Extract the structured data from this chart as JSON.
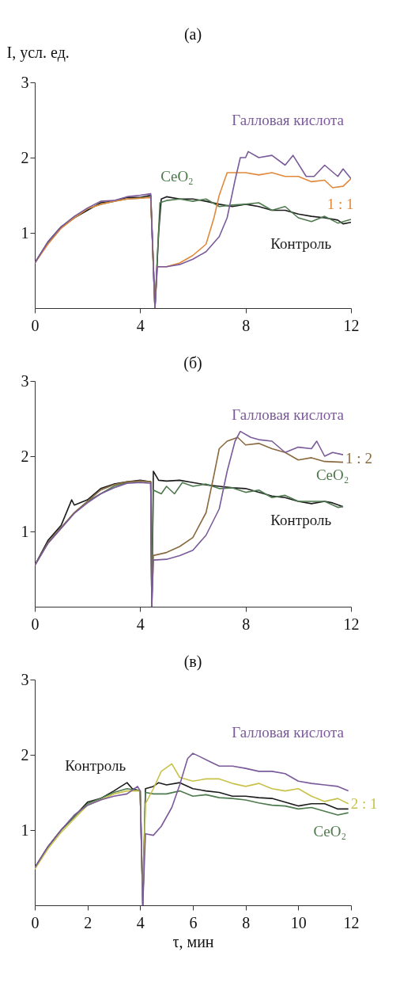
{
  "chart_data": [
    {
      "type": "line",
      "title": "(а)",
      "ylabel": "I, усл. ед.",
      "xlim": [
        0,
        12
      ],
      "ylim": [
        0,
        3
      ],
      "xticks": [
        0,
        4,
        8,
        12
      ],
      "yticks": [
        1,
        2,
        3
      ],
      "series": [
        {
          "name": "Контроль",
          "color": "#1c1c1c",
          "x": [
            0,
            0.5,
            1,
            1.5,
            2,
            2.5,
            3,
            3.5,
            4,
            4.4,
            4.56,
            4.7,
            4.8,
            5,
            5.5,
            6,
            6.5,
            7,
            7.5,
            8,
            8.5,
            9,
            9.5,
            10,
            10.5,
            11,
            11.5,
            11.7,
            12
          ],
          "values": [
            0.6,
            0.88,
            1.08,
            1.2,
            1.3,
            1.4,
            1.42,
            1.47,
            1.47,
            1.5,
            0,
            1.0,
            1.45,
            1.48,
            1.45,
            1.45,
            1.42,
            1.38,
            1.35,
            1.38,
            1.35,
            1.3,
            1.3,
            1.25,
            1.22,
            1.2,
            1.17,
            1.12,
            1.14
          ]
        },
        {
          "name": "CeO₂",
          "color": "#4e7a4e",
          "x": [
            0,
            0.5,
            1,
            1.5,
            2,
            2.5,
            3,
            3.5,
            4,
            4.4,
            4.56,
            4.75,
            5,
            5.5,
            6,
            6.5,
            7,
            7.5,
            8,
            8.5,
            9,
            9.5,
            10,
            10.5,
            11,
            11.5,
            12
          ],
          "values": [
            0.6,
            0.86,
            1.07,
            1.2,
            1.32,
            1.38,
            1.42,
            1.45,
            1.46,
            1.48,
            0,
            1.4,
            1.43,
            1.45,
            1.42,
            1.45,
            1.35,
            1.37,
            1.38,
            1.4,
            1.3,
            1.35,
            1.2,
            1.15,
            1.22,
            1.13,
            1.18
          ]
        },
        {
          "name": "1 : 1",
          "color": "#e0893c",
          "x": [
            0,
            0.5,
            1,
            1.5,
            2,
            2.5,
            3,
            3.5,
            4,
            4.4,
            4.56,
            4.65,
            5,
            5.5,
            6,
            6.5,
            6.8,
            7,
            7.3,
            7.7,
            8,
            8.5,
            9,
            9.5,
            10,
            10.5,
            11,
            11.3,
            11.7,
            12
          ],
          "values": [
            0.6,
            0.85,
            1.06,
            1.2,
            1.32,
            1.38,
            1.42,
            1.45,
            1.46,
            1.47,
            0,
            0.55,
            0.55,
            0.6,
            0.7,
            0.85,
            1.2,
            1.5,
            1.8,
            1.8,
            1.8,
            1.77,
            1.8,
            1.75,
            1.75,
            1.68,
            1.7,
            1.6,
            1.62,
            1.72
          ]
        },
        {
          "name": "Галловая кислота",
          "color": "#7a5a9a",
          "x": [
            0,
            0.5,
            1,
            1.5,
            2,
            2.5,
            3,
            3.5,
            4,
            4.4,
            4.56,
            4.65,
            5,
            5.5,
            6,
            6.5,
            7,
            7.3,
            7.6,
            7.8,
            8,
            8.1,
            8.5,
            9,
            9.5,
            9.8,
            10.3,
            10.6,
            11,
            11.5,
            11.7,
            12
          ],
          "values": [
            0.6,
            0.88,
            1.08,
            1.22,
            1.33,
            1.42,
            1.43,
            1.48,
            1.5,
            1.52,
            0,
            0.55,
            0.55,
            0.58,
            0.65,
            0.75,
            0.95,
            1.2,
            1.7,
            2.0,
            2.0,
            2.08,
            2.0,
            2.03,
            1.9,
            2.03,
            1.75,
            1.75,
            1.9,
            1.75,
            1.85,
            1.72
          ]
        }
      ],
      "legend": "top right"
    },
    {
      "type": "line",
      "title": "(б)",
      "xlim": [
        0,
        12
      ],
      "ylim": [
        0,
        3
      ],
      "xticks": [
        0,
        4,
        8,
        12
      ],
      "yticks": [
        1,
        2,
        3
      ],
      "series": [
        {
          "name": "Контроль",
          "color": "#1c1c1c",
          "x": [
            0,
            0.5,
            1,
            1.4,
            1.5,
            2,
            2.5,
            3,
            3.5,
            4,
            4.4,
            4.44,
            4.5,
            4.7,
            5,
            5.5,
            6,
            6.5,
            7,
            7.5,
            8,
            8.5,
            9,
            9.5,
            10,
            10.5,
            11,
            11.3,
            11.7
          ],
          "values": [
            0.55,
            0.88,
            1.08,
            1.42,
            1.35,
            1.42,
            1.57,
            1.63,
            1.66,
            1.68,
            1.66,
            0,
            1.8,
            1.68,
            1.67,
            1.68,
            1.65,
            1.62,
            1.6,
            1.58,
            1.57,
            1.52,
            1.47,
            1.45,
            1.4,
            1.37,
            1.4,
            1.38,
            1.33
          ]
        },
        {
          "name": "CeO₂",
          "color": "#4e7a4e",
          "x": [
            0,
            0.5,
            1,
            1.5,
            2,
            2.5,
            3,
            3.5,
            4,
            4.4,
            4.44,
            4.5,
            4.8,
            5,
            5.3,
            5.6,
            6,
            6.5,
            7,
            7.5,
            8,
            8.5,
            9,
            9.5,
            10,
            10.5,
            11,
            11.5,
            11.7
          ],
          "values": [
            0.55,
            0.85,
            1.05,
            1.25,
            1.4,
            1.5,
            1.6,
            1.65,
            1.67,
            1.66,
            0,
            1.55,
            1.5,
            1.6,
            1.5,
            1.65,
            1.6,
            1.63,
            1.57,
            1.58,
            1.52,
            1.55,
            1.45,
            1.48,
            1.4,
            1.4,
            1.4,
            1.32,
            1.33
          ]
        },
        {
          "name": "1 : 2",
          "color": "#8a6a3e",
          "x": [
            0,
            0.5,
            1,
            1.5,
            2,
            2.5,
            3,
            3.5,
            4,
            4.4,
            4.44,
            4.5,
            5,
            5.5,
            6,
            6.5,
            6.8,
            7,
            7.3,
            7.7,
            8,
            8.5,
            9,
            9.5,
            10,
            10.5,
            11,
            11.7
          ],
          "values": [
            0.55,
            0.85,
            1.05,
            1.25,
            1.4,
            1.55,
            1.62,
            1.66,
            1.67,
            1.66,
            0,
            0.68,
            0.72,
            0.8,
            0.92,
            1.25,
            1.75,
            2.1,
            2.2,
            2.25,
            2.15,
            2.17,
            2.1,
            2.05,
            1.95,
            1.98,
            1.93,
            1.92
          ]
        },
        {
          "name": "Галловая кислота",
          "color": "#7a5a9a",
          "x": [
            0,
            0.5,
            1,
            1.5,
            2,
            2.5,
            3,
            3.5,
            4,
            4.4,
            4.44,
            4.5,
            5,
            5.5,
            6,
            6.5,
            7,
            7.3,
            7.6,
            7.8,
            8.2,
            8.5,
            9,
            9.5,
            10,
            10.5,
            10.7,
            11,
            11.3,
            11.7
          ],
          "values": [
            0.55,
            0.84,
            1.04,
            1.24,
            1.38,
            1.5,
            1.58,
            1.64,
            1.65,
            1.64,
            0,
            0.62,
            0.63,
            0.68,
            0.75,
            0.95,
            1.3,
            1.8,
            2.2,
            2.33,
            2.25,
            2.22,
            2.2,
            2.05,
            2.12,
            2.1,
            2.2,
            2.0,
            2.05,
            2.02
          ]
        }
      ],
      "legend": "top right"
    },
    {
      "type": "line",
      "title": "(в)",
      "xlabel": "τ, мин",
      "xlim": [
        0,
        12
      ],
      "ylim": [
        0,
        3
      ],
      "xticks": [
        0,
        2,
        4,
        6,
        8,
        10,
        12
      ],
      "yticks": [
        1,
        2,
        3
      ],
      "series": [
        {
          "name": "Контроль",
          "color": "#1c1c1c",
          "x": [
            0,
            0.5,
            1,
            1.5,
            2,
            2.5,
            3,
            3.5,
            3.7,
            4,
            4.1,
            4.2,
            4.5,
            4.7,
            5,
            5.5,
            6,
            6.5,
            7,
            7.5,
            8,
            8.5,
            9,
            9.5,
            10,
            10.5,
            11,
            11.5,
            11.9
          ],
          "values": [
            0.5,
            0.78,
            1.0,
            1.18,
            1.37,
            1.42,
            1.52,
            1.63,
            1.55,
            1.52,
            0,
            1.55,
            1.58,
            1.63,
            1.6,
            1.63,
            1.55,
            1.52,
            1.5,
            1.45,
            1.45,
            1.43,
            1.42,
            1.37,
            1.32,
            1.35,
            1.35,
            1.28,
            1.28
          ]
        },
        {
          "name": "CeO₂",
          "color": "#4e7a4e",
          "x": [
            0,
            0.5,
            1,
            1.5,
            2,
            2.5,
            3,
            3.5,
            4,
            4.1,
            4.2,
            4.5,
            5,
            5.5,
            6,
            6.5,
            7,
            7.5,
            8,
            8.5,
            9,
            9.5,
            10,
            10.5,
            11,
            11.5,
            11.9
          ],
          "values": [
            0.5,
            0.77,
            1.0,
            1.18,
            1.35,
            1.42,
            1.5,
            1.55,
            1.52,
            0,
            1.5,
            1.48,
            1.48,
            1.52,
            1.45,
            1.47,
            1.43,
            1.42,
            1.4,
            1.36,
            1.33,
            1.32,
            1.28,
            1.3,
            1.25,
            1.2,
            1.23
          ]
        },
        {
          "name": "2 : 1",
          "color": "#c8c24a",
          "x": [
            0,
            0.5,
            1,
            1.5,
            2,
            2.5,
            3,
            3.5,
            4,
            4.1,
            4.2,
            4.5,
            4.8,
            5.2,
            5.5,
            6,
            6.5,
            7,
            7.5,
            8,
            8.5,
            9,
            9.5,
            10,
            10.5,
            11,
            11.5,
            11.9
          ],
          "values": [
            0.48,
            0.75,
            0.97,
            1.15,
            1.33,
            1.4,
            1.48,
            1.52,
            1.52,
            0,
            1.35,
            1.55,
            1.78,
            1.88,
            1.7,
            1.65,
            1.68,
            1.68,
            1.62,
            1.58,
            1.62,
            1.55,
            1.52,
            1.55,
            1.45,
            1.38,
            1.42,
            1.35
          ]
        },
        {
          "name": "Галловая кислота",
          "color": "#7a5a9a",
          "x": [
            0,
            0.5,
            1,
            1.5,
            2,
            2.5,
            3,
            3.5,
            3.9,
            4,
            4.1,
            4.2,
            4.5,
            4.8,
            5.2,
            5.5,
            5.8,
            6,
            6.3,
            6.7,
            7,
            7.5,
            8,
            8.5,
            9,
            9.5,
            10,
            10.5,
            11,
            11.5,
            11.9
          ],
          "values": [
            0.5,
            0.78,
            1.0,
            1.2,
            1.33,
            1.4,
            1.45,
            1.48,
            1.58,
            1.52,
            0,
            0.95,
            0.93,
            1.05,
            1.3,
            1.6,
            1.95,
            2.02,
            1.97,
            1.9,
            1.85,
            1.85,
            1.82,
            1.78,
            1.78,
            1.75,
            1.65,
            1.62,
            1.6,
            1.58,
            1.52
          ]
        }
      ],
      "legend": "top right"
    }
  ]
}
